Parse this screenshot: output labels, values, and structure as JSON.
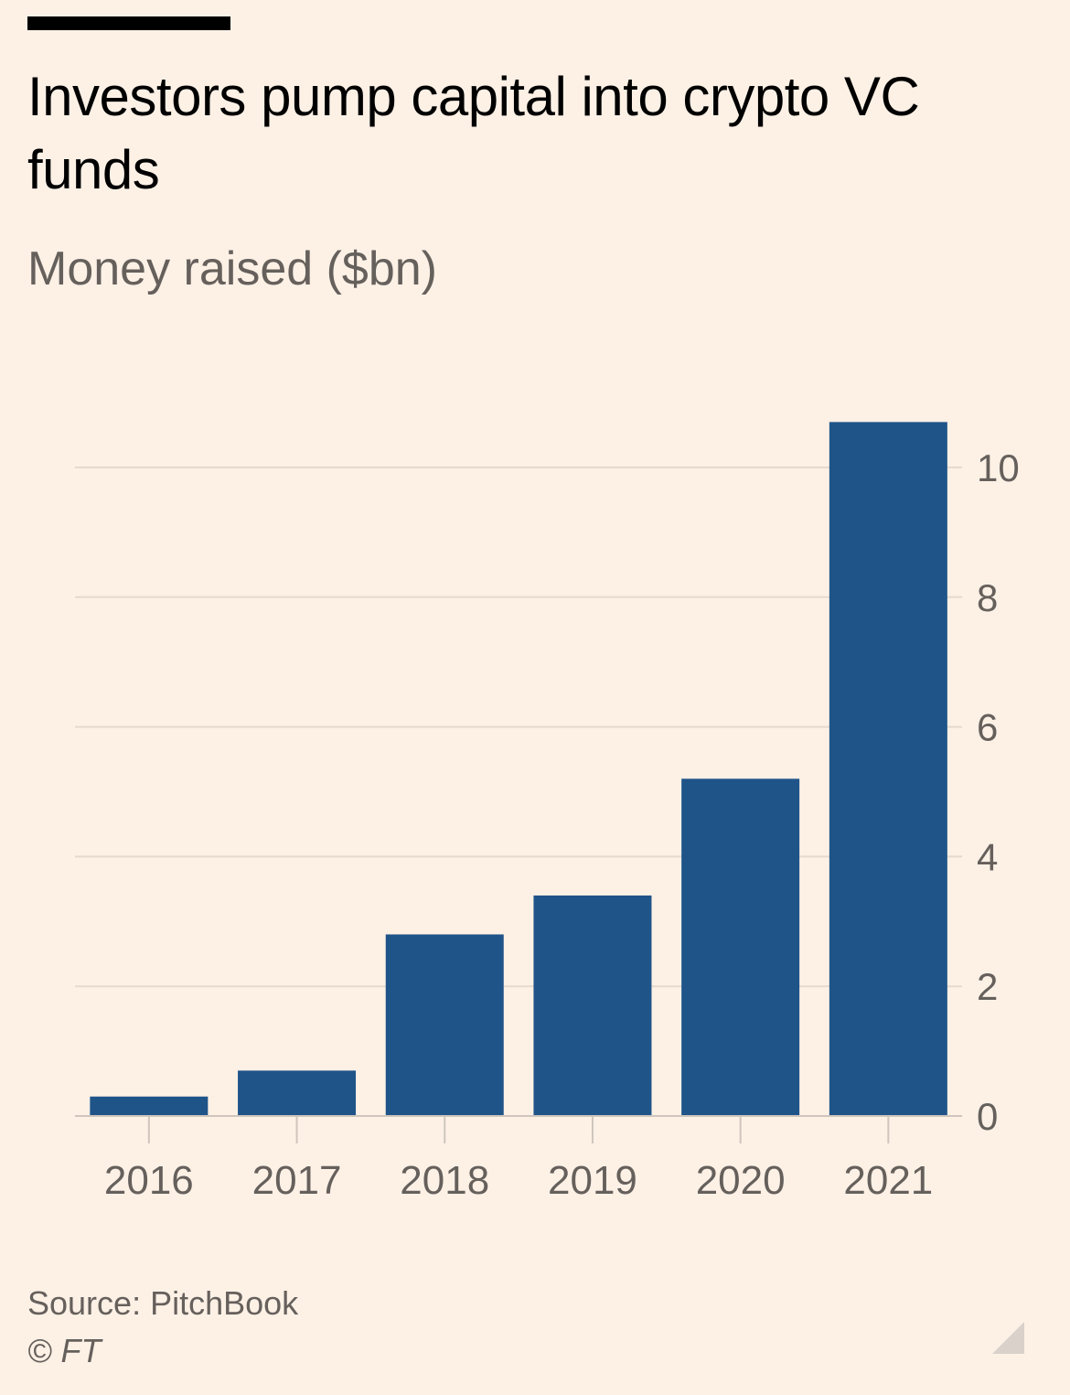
{
  "header": {
    "title": "Investors pump capital into crypto VC funds",
    "subtitle": "Money raised ($bn)"
  },
  "footer": {
    "source": "Source: PitchBook",
    "copyright": "© FT"
  },
  "colors": {
    "background": "#fdf1e6",
    "bar": "#1f5489",
    "gridline": "#e6d9ce",
    "text_muted": "#66605c"
  },
  "chart_data": {
    "type": "bar",
    "title": "Investors pump capital into crypto VC funds",
    "subtitle": "Money raised ($bn)",
    "xlabel": "",
    "ylabel": "",
    "categories": [
      "2016",
      "2017",
      "2018",
      "2019",
      "2020",
      "2021"
    ],
    "values": [
      0.3,
      0.7,
      2.8,
      3.4,
      5.2,
      10.7
    ],
    "ylim": [
      0,
      11
    ],
    "yticks": [
      0,
      2,
      4,
      6,
      8,
      10
    ],
    "ytick_labels": [
      "0",
      "2",
      "4",
      "6",
      "8",
      "10"
    ],
    "y_axis_side": "right",
    "grid": true,
    "legend": "none"
  }
}
